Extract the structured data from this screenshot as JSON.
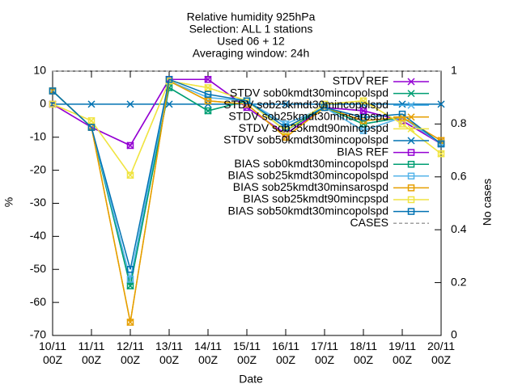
{
  "chart_data": {
    "type": "line",
    "title": [
      "Relative humidity 925hPa",
      "Selection: ALL      1 stations",
      "Used 06 + 12",
      "Averaging window: 24h"
    ],
    "xlabel": "Date",
    "ylabel": "%",
    "y2label": "No cases",
    "categories": [
      "10/11\n00Z",
      "11/11\n00Z",
      "12/11\n00Z",
      "13/11\n00Z",
      "14/11\n00Z",
      "15/11\n00Z",
      "16/11\n00Z",
      "17/11\n00Z",
      "18/11\n00Z",
      "19/11\n00Z",
      "20/11\n00Z"
    ],
    "ylim": [
      -70,
      10
    ],
    "yticks": [
      -70,
      -60,
      -50,
      -40,
      -30,
      -20,
      -10,
      0,
      10
    ],
    "y2lim": [
      0,
      1
    ],
    "y2ticks": [
      0,
      0.2,
      0.4,
      0.6,
      0.8,
      1
    ],
    "legend": "top-right",
    "series": [
      {
        "name": "STDV REF",
        "color": "#9400d3",
        "marker": "cross",
        "values": [
          0,
          -7,
          -12.5,
          7.5,
          7.5,
          -1,
          -9,
          -1,
          -2,
          -5,
          -12
        ]
      },
      {
        "name": "STDV sob0kmdt30mincopolspd",
        "color": "#009e73",
        "marker": "cross",
        "values": [
          4,
          -7,
          -55,
          5,
          -2,
          1,
          -8,
          -1,
          -6,
          -4,
          -12
        ]
      },
      {
        "name": "STDV sob25kmdt30mincopolspd",
        "color": "#56b4e9",
        "marker": "cross",
        "values": [
          4,
          -7,
          -53,
          7,
          2,
          1,
          -6,
          -1,
          -8,
          -4,
          -12
        ]
      },
      {
        "name": "STDV sob25kmdt30minsarospd",
        "color": "#e69f00",
        "marker": "cross",
        "values": [
          4,
          -7,
          -66,
          7,
          1,
          0,
          -10,
          -1,
          -5,
          -4,
          -11
        ]
      },
      {
        "name": "STDV sob25kmdt90mincpspd",
        "color": "#f0e442",
        "marker": "cross",
        "values": [
          0,
          -5,
          -21.5,
          7,
          5,
          1,
          -8,
          0,
          1,
          -6,
          -15
        ]
      },
      {
        "name": "STDV sob50kmdt30mincopolspd",
        "color": "#0072b2",
        "marker": "cross",
        "values": [
          0,
          0,
          0,
          0,
          0,
          0,
          0,
          0,
          0,
          0,
          0
        ]
      },
      {
        "name": "BIAS REF",
        "color": "#9400d3",
        "marker": "square",
        "values": [
          0,
          -7,
          -12.5,
          7.5,
          7.5,
          -1,
          -9,
          -1,
          -2,
          -5,
          -12
        ]
      },
      {
        "name": "BIAS sob0kmdt30mincopolspd",
        "color": "#009e73",
        "marker": "square",
        "values": [
          4,
          -7,
          -55,
          5,
          -2,
          1,
          -8,
          -1,
          -6,
          -4,
          -12
        ]
      },
      {
        "name": "BIAS sob25kmdt30mincopolspd",
        "color": "#56b4e9",
        "marker": "square",
        "values": [
          4,
          -7,
          -53,
          7,
          2,
          1,
          -6,
          -1,
          -8,
          -4,
          -12
        ]
      },
      {
        "name": "BIAS sob25kmdt30minsarospd",
        "color": "#e69f00",
        "marker": "square",
        "values": [
          4,
          -7,
          -66,
          7,
          1,
          0,
          -10,
          -1,
          -5,
          -4,
          -11
        ]
      },
      {
        "name": "BIAS sob25kmdt90mincpspd",
        "color": "#f0e442",
        "marker": "square",
        "values": [
          0,
          -5,
          -21.5,
          7,
          5,
          1,
          -8,
          0,
          1,
          -6,
          -15
        ]
      },
      {
        "name": "BIAS sob50kmdt30mincopolspd",
        "color": "#0072b2",
        "marker": "square",
        "values": [
          4,
          -7,
          -50,
          7.5,
          3,
          1,
          -7,
          -1,
          -4,
          -3,
          -12
        ]
      },
      {
        "name": "CASES",
        "color": "#a0a0a0",
        "marker": "none",
        "dash": true,
        "axis": "y2",
        "values": [
          1,
          1,
          1,
          1,
          1,
          1,
          1,
          1,
          1,
          1,
          1
        ]
      }
    ]
  }
}
